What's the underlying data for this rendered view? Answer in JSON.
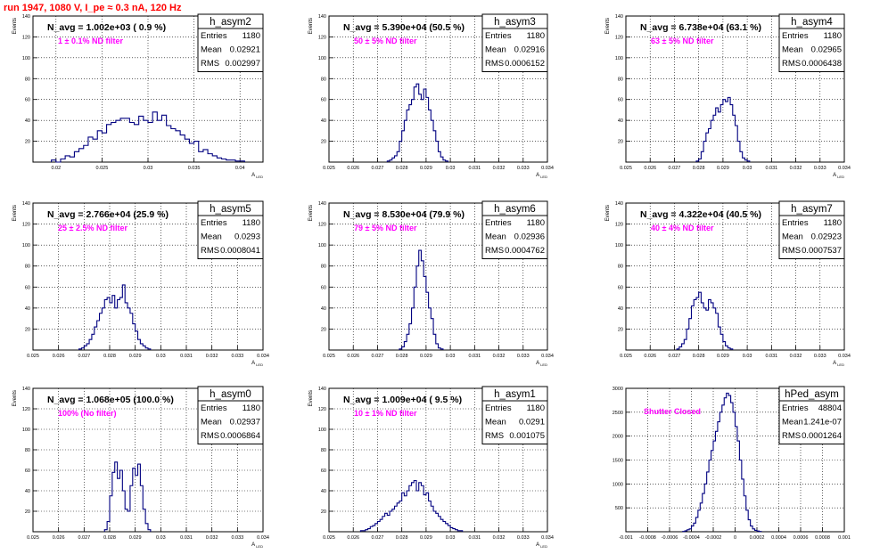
{
  "page_title": "run 1947,  1080 V, I_pe ≈ 0.3 nA, 120 Hz",
  "stat_labels": {
    "entries": "Entries",
    "mean": "Mean",
    "rms": "RMS"
  },
  "chart_data": [
    {
      "type": "histogram",
      "name": "h_asym2",
      "navg_label": "N_avg = 1.002e+03 ( 0.9 %)",
      "filter_label": "1 ± 0.1% ND filter",
      "stats": {
        "entries": "1180",
        "mean": "0.02921",
        "rms": "0.002997"
      },
      "ylabel": "Events",
      "xlabel": "A_LED",
      "xlim": [
        0.0175,
        0.0425
      ],
      "ylim": [
        0,
        140
      ],
      "xticks": [
        "0.02",
        "0.025",
        "0.03",
        "0.035",
        "0.04"
      ],
      "xtick_values": [
        0.02,
        0.025,
        0.03,
        0.035,
        0.04
      ],
      "yticks": [
        "20",
        "40",
        "60",
        "80",
        "100",
        "120",
        "140"
      ],
      "ytick_values": [
        20,
        40,
        60,
        80,
        100,
        120,
        140
      ],
      "bins": {
        "start": 0.0195,
        "width": 0.0005,
        "counts": [
          2,
          0,
          3,
          6,
          5,
          10,
          13,
          16,
          24,
          22,
          30,
          28,
          36,
          38,
          40,
          42,
          42,
          38,
          36,
          44,
          40,
          38,
          48,
          40,
          45,
          35,
          32,
          30,
          26,
          22,
          18,
          20,
          10,
          12,
          8,
          6,
          4,
          3,
          2,
          2,
          1,
          1
        ]
      }
    },
    {
      "type": "histogram",
      "name": "h_asym3",
      "navg_label": "N_avg = 5.390e+04 (50.5 %)",
      "filter_label": "50 ± 5% ND filter",
      "stats": {
        "entries": "1180",
        "mean": "0.02916",
        "rms": "0.0006152"
      },
      "ylabel": "Events",
      "xlabel": "A_LED",
      "xlim": [
        0.025,
        0.034
      ],
      "ylim": [
        0,
        140
      ],
      "xticks": [
        "0.025",
        "0.026",
        "0.027",
        "0.028",
        "0.029",
        "0.03",
        "0.031",
        "0.032",
        "0.033",
        "0.034"
      ],
      "xtick_values": [
        0.025,
        0.026,
        0.027,
        0.028,
        0.029,
        0.03,
        0.031,
        0.032,
        0.033,
        0.034
      ],
      "yticks": [
        "20",
        "40",
        "60",
        "80",
        "100",
        "120",
        "140"
      ],
      "ytick_values": [
        20,
        40,
        60,
        80,
        100,
        120,
        140
      ],
      "bins": {
        "start": 0.0274,
        "width": 0.0001,
        "counts": [
          1,
          2,
          4,
          6,
          10,
          20,
          30,
          40,
          50,
          55,
          60,
          72,
          75,
          65,
          60,
          70,
          62,
          50,
          40,
          30,
          20,
          10,
          5,
          2,
          1
        ]
      }
    },
    {
      "type": "histogram",
      "name": "h_asym4",
      "navg_label": "N_avg = 6.738e+04 (63.1 %)",
      "filter_label": "63 ± 5% ND filter",
      "stats": {
        "entries": "1180",
        "mean": "0.02965",
        "rms": "0.0006438"
      },
      "ylabel": "Events",
      "xlabel": "A_LED",
      "xlim": [
        0.025,
        0.034
      ],
      "ylim": [
        0,
        140
      ],
      "xticks": [
        "0.025",
        "0.026",
        "0.027",
        "0.028",
        "0.029",
        "0.03",
        "0.031",
        "0.032",
        "0.033",
        "0.034"
      ],
      "xtick_values": [
        0.025,
        0.026,
        0.027,
        0.028,
        0.029,
        0.03,
        0.031,
        0.032,
        0.033,
        0.034
      ],
      "yticks": [
        "20",
        "40",
        "60",
        "80",
        "100",
        "120",
        "140"
      ],
      "ytick_values": [
        20,
        40,
        60,
        80,
        100,
        120,
        140
      ],
      "bins": {
        "start": 0.0279,
        "width": 0.0001,
        "counts": [
          1,
          3,
          10,
          20,
          28,
          32,
          40,
          45,
          52,
          48,
          55,
          60,
          58,
          62,
          55,
          45,
          35,
          20,
          10,
          4,
          2,
          1
        ]
      }
    },
    {
      "type": "histogram",
      "name": "h_asym5",
      "navg_label": "N_avg = 2.766e+04 (25.9 %)",
      "filter_label": "25 ± 2.5% ND filter",
      "stats": {
        "entries": "1180",
        "mean": "0.0293",
        "rms": "0.0008041"
      },
      "ylabel": "Events",
      "xlabel": "A_LED",
      "xlim": [
        0.025,
        0.034
      ],
      "ylim": [
        0,
        140
      ],
      "xticks": [
        "0.025",
        "0.026",
        "0.027",
        "0.028",
        "0.029",
        "0.03",
        "0.031",
        "0.032",
        "0.033",
        "0.034"
      ],
      "xtick_values": [
        0.025,
        0.026,
        0.027,
        0.028,
        0.029,
        0.03,
        0.031,
        0.032,
        0.033,
        0.034
      ],
      "yticks": [
        "20",
        "40",
        "60",
        "80",
        "100",
        "120",
        "140"
      ],
      "ytick_values": [
        20,
        40,
        60,
        80,
        100,
        120,
        140
      ],
      "bins": {
        "start": 0.0268,
        "width": 0.0001,
        "counts": [
          1,
          2,
          4,
          6,
          10,
          15,
          22,
          28,
          35,
          40,
          48,
          50,
          45,
          52,
          40,
          48,
          50,
          62,
          45,
          40,
          35,
          25,
          18,
          10,
          6,
          4,
          2,
          1
        ]
      }
    },
    {
      "type": "histogram",
      "name": "h_asym6",
      "navg_label": "N_avg = 8.530e+04 (79.9 %)",
      "filter_label": "79 ± 5% ND filter",
      "stats": {
        "entries": "1180",
        "mean": "0.02936",
        "rms": "0.0004762"
      },
      "ylabel": "Events",
      "xlabel": "A_LED",
      "xlim": [
        0.025,
        0.034
      ],
      "ylim": [
        0,
        140
      ],
      "xticks": [
        "0.025",
        "0.026",
        "0.027",
        "0.028",
        "0.029",
        "0.03",
        "0.031",
        "0.032",
        "0.033",
        "0.034"
      ],
      "xtick_values": [
        0.025,
        0.026,
        0.027,
        0.028,
        0.029,
        0.03,
        0.031,
        0.032,
        0.033,
        0.034
      ],
      "yticks": [
        "20",
        "40",
        "60",
        "80",
        "100",
        "120",
        "140"
      ],
      "ytick_values": [
        20,
        40,
        60,
        80,
        100,
        120,
        140
      ],
      "bins": {
        "start": 0.0279,
        "width": 0.0001,
        "counts": [
          1,
          3,
          8,
          15,
          25,
          40,
          60,
          80,
          95,
          85,
          70,
          55,
          40,
          30,
          15,
          6,
          2,
          1
        ]
      }
    },
    {
      "type": "histogram",
      "name": "h_asym7",
      "navg_label": "N_avg = 4.322e+04 (40.5 %)",
      "filter_label": "40 ± 4% ND filter",
      "stats": {
        "entries": "1180",
        "mean": "0.02923",
        "rms": "0.0007537"
      },
      "ylabel": "Events",
      "xlabel": "A_LED",
      "xlim": [
        0.025,
        0.034
      ],
      "ylim": [
        0,
        140
      ],
      "xticks": [
        "0.025",
        "0.026",
        "0.027",
        "0.028",
        "0.029",
        "0.03",
        "0.031",
        "0.032",
        "0.033",
        "0.034"
      ],
      "xtick_values": [
        0.025,
        0.026,
        0.027,
        0.028,
        0.029,
        0.03,
        0.031,
        0.032,
        0.033,
        0.034
      ],
      "yticks": [
        "20",
        "40",
        "60",
        "80",
        "100",
        "120",
        "140"
      ],
      "ytick_values": [
        20,
        40,
        60,
        80,
        100,
        120,
        140
      ],
      "bins": {
        "start": 0.0271,
        "width": 0.0001,
        "counts": [
          1,
          3,
          6,
          10,
          20,
          30,
          42,
          48,
          50,
          55,
          45,
          40,
          38,
          48,
          45,
          40,
          35,
          22,
          15,
          8,
          4,
          2,
          1
        ]
      }
    },
    {
      "type": "histogram",
      "name": "h_asym0",
      "navg_label": "N_avg = 1.068e+05 (100.0 %)",
      "filter_label": "100% (No filter)",
      "stats": {
        "entries": "1180",
        "mean": "0.02937",
        "rms": "0.0006864"
      },
      "ylabel": "Events",
      "xlabel": "A_LED",
      "xlim": [
        0.025,
        0.034
      ],
      "ylim": [
        0,
        140
      ],
      "xticks": [
        "0.025",
        "0.026",
        "0.027",
        "0.028",
        "0.029",
        "0.03",
        "0.031",
        "0.032",
        "0.033",
        "0.034"
      ],
      "xtick_values": [
        0.025,
        0.026,
        0.027,
        0.028,
        0.029,
        0.03,
        0.031,
        0.032,
        0.033,
        0.034
      ],
      "yticks": [
        "20",
        "40",
        "60",
        "80",
        "100",
        "120",
        "140"
      ],
      "ytick_values": [
        20,
        40,
        60,
        80,
        100,
        120,
        140
      ],
      "bins": {
        "start": 0.0278,
        "width": 0.0001,
        "counts": [
          2,
          10,
          35,
          58,
          68,
          52,
          60,
          40,
          22,
          20,
          45,
          62,
          55,
          66,
          45,
          22,
          8,
          2
        ]
      }
    },
    {
      "type": "histogram",
      "name": "h_asym1",
      "navg_label": "N_avg = 1.009e+04 ( 9.5 %)",
      "filter_label": "10 ± 1% ND filter",
      "stats": {
        "entries": "1180",
        "mean": "0.0291",
        "rms": "0.001075"
      },
      "ylabel": "Events",
      "xlabel": "A_LED",
      "xlim": [
        0.025,
        0.034
      ],
      "ylim": [
        0,
        140
      ],
      "xticks": [
        "0.025",
        "0.026",
        "0.027",
        "0.028",
        "0.029",
        "0.03",
        "0.031",
        "0.032",
        "0.033",
        "0.034"
      ],
      "xtick_values": [
        0.025,
        0.026,
        0.027,
        0.028,
        0.029,
        0.03,
        0.031,
        0.032,
        0.033,
        0.034
      ],
      "yticks": [
        "20",
        "40",
        "60",
        "80",
        "100",
        "120",
        "140"
      ],
      "ytick_values": [
        20,
        40,
        60,
        80,
        100,
        120,
        140
      ],
      "bins": {
        "start": 0.0263,
        "width": 0.0001,
        "counts": [
          1,
          1,
          2,
          3,
          5,
          6,
          8,
          10,
          12,
          15,
          18,
          16,
          20,
          22,
          25,
          28,
          30,
          38,
          35,
          40,
          45,
          48,
          50,
          40,
          48,
          45,
          36,
          38,
          30,
          25,
          20,
          18,
          15,
          12,
          10,
          8,
          6,
          4,
          3,
          2,
          1,
          1
        ]
      }
    },
    {
      "type": "histogram",
      "name": "hPed_asym",
      "navg_label": "",
      "filter_label": "Shutter Closed",
      "stats": {
        "entries": "48804",
        "mean": "1.241e-07",
        "rms": "0.0001264"
      },
      "ylabel": "",
      "xlabel": "",
      "xlim": [
        -0.001,
        0.001
      ],
      "ylim": [
        0,
        3000
      ],
      "xticks": [
        "-0.001",
        "-0.0008",
        "-0.0006",
        "-0.0004",
        "-0.0002",
        "0",
        "0.0002",
        "0.0004",
        "0.0006",
        "0.0008",
        "0.001"
      ],
      "xtick_values": [
        -0.001,
        -0.0008,
        -0.0006,
        -0.0004,
        -0.0002,
        0,
        0.0002,
        0.0004,
        0.0006,
        0.0008,
        0.001
      ],
      "yticks": [
        "500",
        "1000",
        "1500",
        "2000",
        "2500",
        "3000"
      ],
      "ytick_values": [
        500,
        1000,
        1500,
        2000,
        2500,
        3000
      ],
      "bins": {
        "start": -0.00048,
        "width": 2e-05,
        "counts": [
          5,
          20,
          40,
          60,
          120,
          180,
          300,
          450,
          600,
          800,
          1000,
          1250,
          1500,
          1700,
          1900,
          2100,
          2300,
          2500,
          2650,
          2800,
          2900,
          2850,
          2700,
          2500,
          2200,
          1900,
          1500,
          1100,
          750,
          450,
          250,
          120,
          60,
          30,
          15,
          5
        ]
      }
    }
  ]
}
